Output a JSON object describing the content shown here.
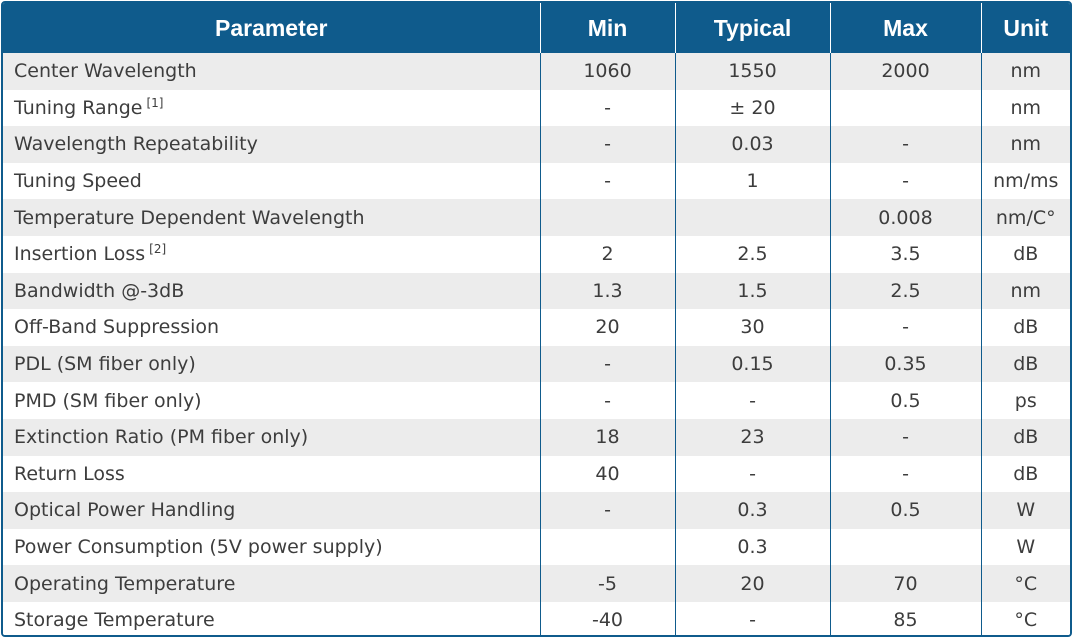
{
  "table": {
    "headers": [
      "Parameter",
      "Min",
      "Typical",
      "Max",
      "Unit"
    ],
    "rows": [
      {
        "parameter": "Center Wavelength",
        "footnote": "",
        "min": "1060",
        "typical": "1550",
        "max": "2000",
        "unit": "nm"
      },
      {
        "parameter": "Tuning Range",
        "footnote": "[1]",
        "min": "-",
        "typical": "± 20",
        "max": "",
        "unit": "nm"
      },
      {
        "parameter": "Wavelength Repeatability",
        "footnote": "",
        "min": "-",
        "typical": "0.03",
        "max": "-",
        "unit": "nm"
      },
      {
        "parameter": "Tuning Speed",
        "footnote": "",
        "min": "-",
        "typical": "1",
        "max": "-",
        "unit": "nm/ms"
      },
      {
        "parameter": "Temperature Dependent Wavelength",
        "footnote": "",
        "min": "",
        "typical": "",
        "max": "0.008",
        "unit": "nm/C°"
      },
      {
        "parameter": "Insertion Loss",
        "footnote": "[2]",
        "min": "2",
        "typical": "2.5",
        "max": "3.5",
        "unit": "dB"
      },
      {
        "parameter": "Bandwidth @-3dB",
        "footnote": "",
        "min": "1.3",
        "typical": "1.5",
        "max": "2.5",
        "unit": "nm"
      },
      {
        "parameter": "Off-Band Suppression",
        "footnote": "",
        "min": "20",
        "typical": "30",
        "max": "-",
        "unit": "dB"
      },
      {
        "parameter": "PDL (SM fiber only)",
        "footnote": "",
        "min": "-",
        "typical": "0.15",
        "max": "0.35",
        "unit": "dB"
      },
      {
        "parameter": "PMD (SM fiber only)",
        "footnote": "",
        "min": "-",
        "typical": "-",
        "max": "0.5",
        "unit": "ps"
      },
      {
        "parameter": "Extinction Ratio (PM fiber only)",
        "footnote": "",
        "min": "18",
        "typical": "23",
        "max": "-",
        "unit": "dB"
      },
      {
        "parameter": "Return Loss",
        "footnote": "",
        "min": "40",
        "typical": "-",
        "max": "-",
        "unit": "dB"
      },
      {
        "parameter": "Optical Power Handling",
        "footnote": "",
        "min": "-",
        "typical": "0.3",
        "max": "0.5",
        "unit": "W"
      },
      {
        "parameter": "Power Consumption (5V power supply)",
        "footnote": "",
        "min": "",
        "typical": "0.3",
        "max": "",
        "unit": "W"
      },
      {
        "parameter": "Operating Temperature",
        "footnote": "",
        "min": "-5",
        "typical": "20",
        "max": "70",
        "unit": "°C"
      },
      {
        "parameter": "Storage Temperature",
        "footnote": "",
        "min": "-40",
        "typical": "-",
        "max": "85",
        "unit": "°C"
      }
    ]
  },
  "colors": {
    "header_bg": "#0f5b8c",
    "header_text": "#ffffff",
    "row_odd": "#ececec",
    "row_even": "#ffffff",
    "text": "#3d3d3d"
  }
}
